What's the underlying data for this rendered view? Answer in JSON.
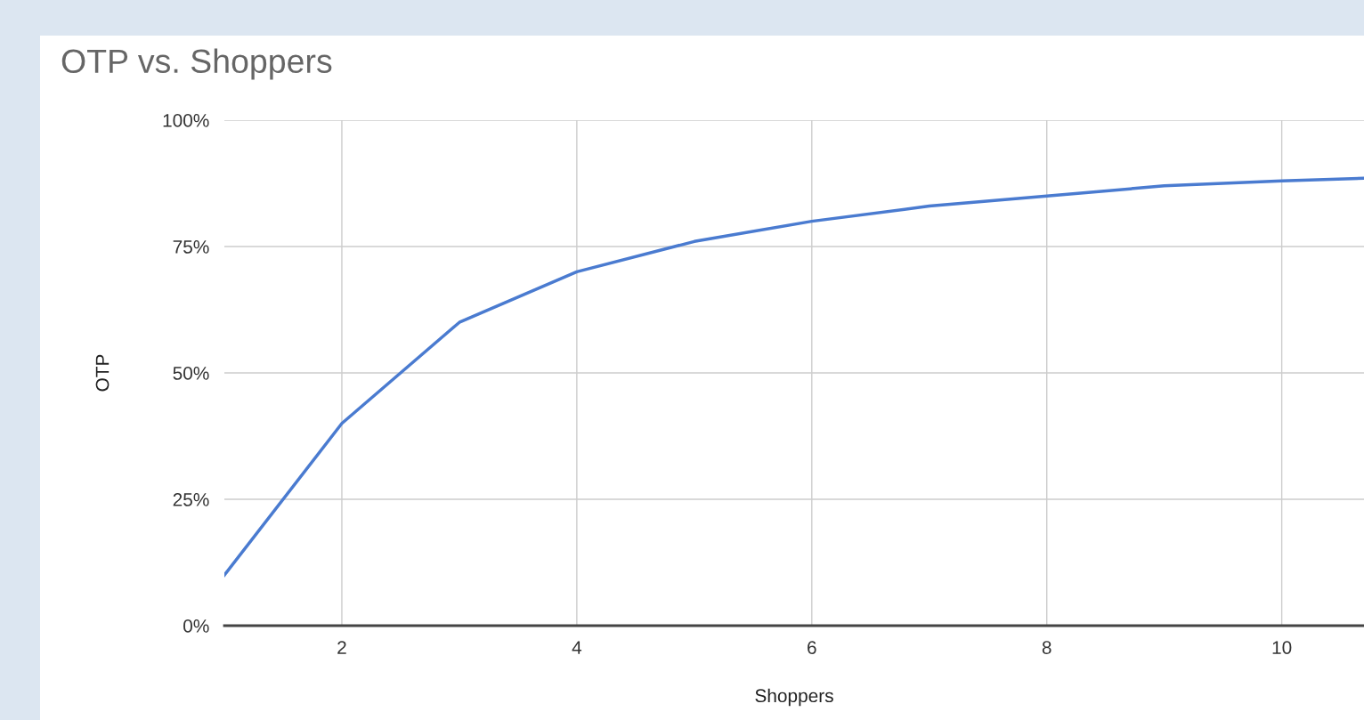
{
  "chart_data": {
    "type": "line",
    "title": "OTP vs. Shoppers",
    "xlabel": "Shoppers",
    "ylabel": "OTP",
    "x": [
      1,
      2,
      3,
      4,
      5,
      6,
      7,
      8,
      9,
      10,
      10.7
    ],
    "series": [
      {
        "color": "#4a7bd0",
        "values": [
          10,
          40,
          60,
          70,
          76,
          80,
          83,
          85,
          87,
          88,
          88.5
        ]
      }
    ],
    "xlim": [
      1,
      10.7
    ],
    "xticks": [
      2,
      4,
      6,
      8,
      10
    ],
    "ylim": [
      0,
      100
    ],
    "yticks": [
      {
        "value": 0,
        "label": "0%"
      },
      {
        "value": 25,
        "label": "25%"
      },
      {
        "value": 50,
        "label": "50%"
      },
      {
        "value": 75,
        "label": "75%"
      },
      {
        "value": 100,
        "label": "100%"
      }
    ],
    "grid": true,
    "marker": "none",
    "line_style": "solid"
  }
}
